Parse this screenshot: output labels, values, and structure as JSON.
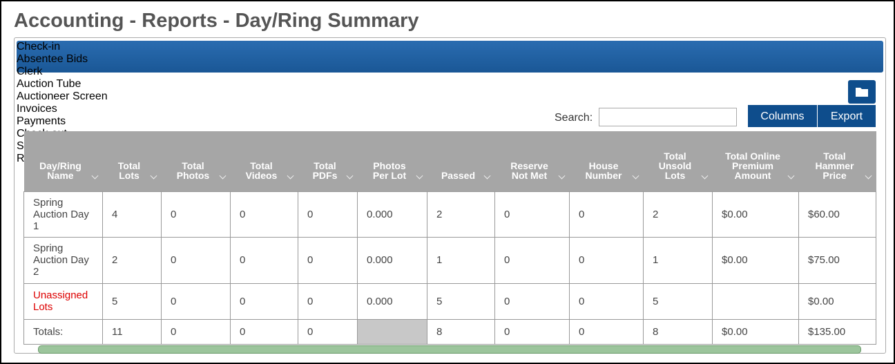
{
  "header": {
    "title": "Accounting - Reports - Day/Ring Summary"
  },
  "tabs": {
    "items": [
      "Check-in",
      "Absentee Bids",
      "Clerk",
      "Auction Tube",
      "Auctioneer Screen",
      "Invoices",
      "Payments",
      "Check-out",
      "Sellers",
      "Reports"
    ],
    "active": "Reports"
  },
  "toolbar": {
    "search_label": "Search:",
    "buttons": [
      "Columns",
      "Export"
    ]
  },
  "table": {
    "columns": [
      "Day/Ring Name",
      "Total Lots",
      "Total Photos",
      "Total Videos",
      "Total PDFs",
      "Photos Per Lot",
      "Passed",
      "Reserve Not Met",
      "House Number",
      "Total Unsold Lots",
      "Total Online Premium Amount",
      "Total Hammer Price"
    ],
    "rows": [
      [
        "Spring Auction Day 1",
        "4",
        "0",
        "0",
        "0",
        "0.000",
        "2",
        "0",
        "0",
        "2",
        "$0.00",
        "$60.00"
      ],
      [
        "Spring Auction Day 2",
        "2",
        "0",
        "0",
        "0",
        "0.000",
        "1",
        "0",
        "0",
        "1",
        "$0.00",
        "$75.00"
      ],
      [
        "Unassigned Lots",
        "5",
        "0",
        "0",
        "0",
        "0.000",
        "5",
        "0",
        "0",
        "5",
        null,
        "$0.00"
      ]
    ],
    "totals": [
      "Totals:",
      "11",
      "0",
      "0",
      "0",
      null,
      "8",
      "0",
      "0",
      "8",
      "$0.00",
      "$135.00"
    ]
  }
}
